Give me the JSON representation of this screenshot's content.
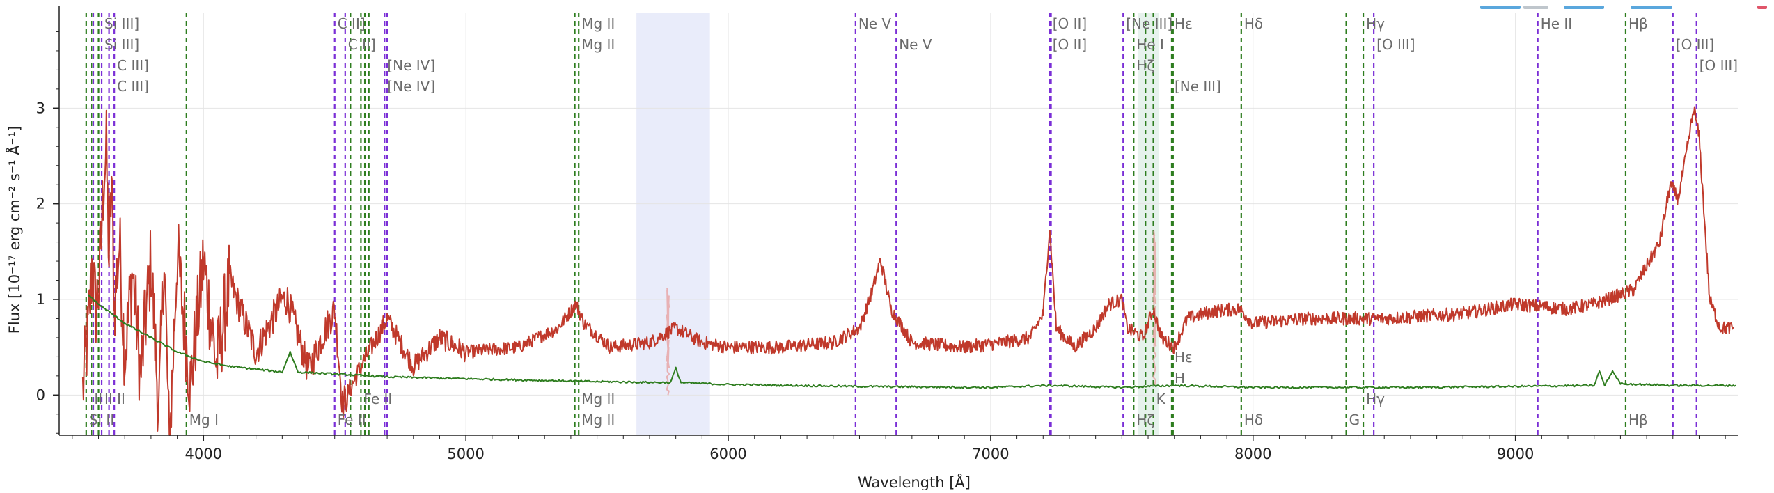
{
  "chart_data": {
    "type": "line",
    "title": "",
    "xlabel": "Wavelength [Å]",
    "ylabel": "Flux [10⁻¹⁷ erg cm⁻² s⁻¹ Å⁻¹]",
    "xlim": [
      3450,
      9850
    ],
    "ylim": [
      -0.42,
      4.0
    ],
    "xticks": [
      4000,
      5000,
      6000,
      7000,
      8000,
      9000
    ],
    "yticks": [
      0,
      1,
      2,
      3
    ],
    "grid": true,
    "series": [
      {
        "role": "spectrum",
        "color": "#c0392b",
        "anchors": [
          [
            3540,
            0.05
          ],
          [
            3560,
            0.65
          ],
          [
            3575,
            1.35
          ],
          [
            3590,
            0.9
          ],
          [
            3600,
            1.1
          ],
          [
            3610,
            1.6
          ],
          [
            3620,
            2.3
          ],
          [
            3630,
            2.55
          ],
          [
            3640,
            1.4
          ],
          [
            3650,
            2.25
          ],
          [
            3660,
            0.9
          ],
          [
            3680,
            1.6
          ],
          [
            3700,
            0.4
          ],
          [
            3730,
            1.3
          ],
          [
            3760,
            0.2
          ],
          [
            3800,
            1.4
          ],
          [
            3830,
            -0.2
          ],
          [
            3850,
            1.5
          ],
          [
            3870,
            -0.6
          ],
          [
            3900,
            1.5
          ],
          [
            3950,
            0.1
          ],
          [
            4000,
            1.4
          ],
          [
            4050,
            0.3
          ],
          [
            4100,
            1.2
          ],
          [
            4200,
            0.45
          ],
          [
            4300,
            1.0
          ],
          [
            4320,
            1.0
          ],
          [
            4400,
            0.25
          ],
          [
            4450,
            0.6
          ],
          [
            4500,
            0.9
          ],
          [
            4530,
            -0.1
          ],
          [
            4600,
            0.3
          ],
          [
            4700,
            0.8
          ],
          [
            4800,
            0.3
          ],
          [
            4900,
            0.6
          ],
          [
            5000,
            0.45
          ],
          [
            5200,
            0.5
          ],
          [
            5350,
            0.7
          ],
          [
            5420,
            0.95
          ],
          [
            5450,
            0.75
          ],
          [
            5550,
            0.5
          ],
          [
            5700,
            0.55
          ],
          [
            5800,
            0.7
          ],
          [
            5900,
            0.55
          ],
          [
            6000,
            0.5
          ],
          [
            6200,
            0.5
          ],
          [
            6400,
            0.55
          ],
          [
            6500,
            0.7
          ],
          [
            6550,
            1.1
          ],
          [
            6580,
            1.42
          ],
          [
            6620,
            0.9
          ],
          [
            6700,
            0.55
          ],
          [
            6900,
            0.5
          ],
          [
            7050,
            0.55
          ],
          [
            7150,
            0.6
          ],
          [
            7200,
            0.85
          ],
          [
            7225,
            1.75
          ],
          [
            7250,
            0.7
          ],
          [
            7320,
            0.5
          ],
          [
            7400,
            0.7
          ],
          [
            7450,
            0.95
          ],
          [
            7500,
            1.0
          ],
          [
            7520,
            0.7
          ],
          [
            7580,
            0.6
          ],
          [
            7620,
            0.9
          ],
          [
            7650,
            0.6
          ],
          [
            7700,
            0.5
          ],
          [
            7750,
            0.8
          ],
          [
            7850,
            0.88
          ],
          [
            7950,
            0.9
          ],
          [
            8000,
            0.75
          ],
          [
            8200,
            0.8
          ],
          [
            8500,
            0.8
          ],
          [
            8800,
            0.85
          ],
          [
            9000,
            0.95
          ],
          [
            9200,
            0.9
          ],
          [
            9300,
            0.95
          ],
          [
            9450,
            1.1
          ],
          [
            9550,
            1.6
          ],
          [
            9590,
            2.2
          ],
          [
            9620,
            2.05
          ],
          [
            9650,
            2.5
          ],
          [
            9680,
            3.0
          ],
          [
            9700,
            2.7
          ],
          [
            9740,
            1.0
          ],
          [
            9780,
            0.7
          ],
          [
            9830,
            0.7
          ]
        ]
      },
      {
        "role": "model-or-noise",
        "color": "#2e7d1f",
        "anchors": [
          [
            3560,
            1.05
          ],
          [
            3600,
            0.95
          ],
          [
            3700,
            0.75
          ],
          [
            3800,
            0.6
          ],
          [
            3900,
            0.45
          ],
          [
            4000,
            0.35
          ],
          [
            4100,
            0.3
          ],
          [
            4200,
            0.27
          ],
          [
            4300,
            0.24
          ],
          [
            4330,
            0.45
          ],
          [
            4360,
            0.24
          ],
          [
            4500,
            0.22
          ],
          [
            4700,
            0.19
          ],
          [
            5000,
            0.17
          ],
          [
            5500,
            0.14
          ],
          [
            5780,
            0.13
          ],
          [
            5800,
            0.28
          ],
          [
            5820,
            0.13
          ],
          [
            6000,
            0.11
          ],
          [
            6500,
            0.09
          ],
          [
            7000,
            0.08
          ],
          [
            7225,
            0.1
          ],
          [
            7500,
            0.08
          ],
          [
            7700,
            0.1
          ],
          [
            8000,
            0.08
          ],
          [
            8600,
            0.08
          ],
          [
            9000,
            0.09
          ],
          [
            9300,
            0.1
          ],
          [
            9320,
            0.25
          ],
          [
            9340,
            0.1
          ],
          [
            9370,
            0.25
          ],
          [
            9400,
            0.12
          ],
          [
            9600,
            0.1
          ],
          [
            9840,
            0.1
          ]
        ]
      }
    ],
    "shaded_bands": [
      {
        "x0": 5650,
        "x1": 5930,
        "color": "#e9ecfa"
      },
      {
        "x0": 7560,
        "x1": 7640,
        "color": "#e6f2ec"
      }
    ],
    "faint_features": [
      {
        "x": 5770,
        "y0": 0.0,
        "y1": 1.25,
        "color": "#e7a3a3"
      },
      {
        "x": 7625,
        "y0": 0.1,
        "y1": 1.9,
        "color": "#e7a3a3"
      }
    ],
    "line_markers": [
      {
        "x": 3553,
        "type": "abs",
        "labels_top": [],
        "labels_bottom": [
          {
            "text": "Si II",
            "row": 1
          }
        ]
      },
      {
        "x": 3573,
        "type": "abs",
        "labels_top": [],
        "labels_bottom": [
          {
            "text": "II",
            "row": 0
          }
        ]
      },
      {
        "x": 3612,
        "type": "em",
        "labels_top": [
          {
            "text": "Si III]",
            "row": 0
          },
          {
            "text": "Si III]",
            "row": 1
          }
        ],
        "labels_bottom": [
          {
            "text": "II",
            "row": 0
          }
        ]
      },
      {
        "x": 3660,
        "type": "em",
        "labels_top": [
          {
            "text": "C III]",
            "row": 2
          },
          {
            "text": "C III]",
            "row": 3
          }
        ],
        "labels_bottom": [
          {
            "text": "II",
            "row": 0
          }
        ]
      },
      {
        "x": 3935,
        "type": "abs",
        "labels_top": [],
        "labels_bottom": [
          {
            "text": "Mg I",
            "row": 1
          }
        ]
      },
      {
        "x": 4500,
        "type": "em",
        "labels_top": [
          {
            "text": "C II]",
            "row": 0
          }
        ],
        "labels_bottom": [
          {
            "text": "Fe II",
            "row": 1
          }
        ]
      },
      {
        "x": 4540,
        "type": "em",
        "labels_top": [
          {
            "text": "C II]",
            "row": 1
          }
        ],
        "labels_bottom": []
      },
      {
        "x": 4600,
        "type": "abs",
        "labels_top": [],
        "labels_bottom": [
          {
            "text": "Fe II",
            "row": 0
          }
        ]
      },
      {
        "x": 4690,
        "type": "em",
        "labels_top": [
          {
            "text": "[Ne IV]",
            "row": 2
          },
          {
            "text": "[Ne IV]",
            "row": 3
          }
        ],
        "labels_bottom": []
      },
      {
        "x": 5430,
        "type": "abs",
        "labels_top": [
          {
            "text": "Mg II",
            "row": 0
          },
          {
            "text": "Mg II",
            "row": 1
          }
        ],
        "labels_bottom": [
          {
            "text": "Mg II",
            "row": 0
          },
          {
            "text": "Mg II",
            "row": 1
          }
        ]
      },
      {
        "x": 6485,
        "type": "em",
        "labels_top": [
          {
            "text": "Ne V",
            "row": 0
          }
        ],
        "labels_bottom": []
      },
      {
        "x": 6640,
        "type": "em",
        "labels_top": [
          {
            "text": "Ne V",
            "row": 1
          }
        ],
        "labels_bottom": []
      },
      {
        "x": 7225,
        "type": "em",
        "labels_top": [
          {
            "text": "[O II]",
            "row": 0
          },
          {
            "text": "[O II]",
            "row": 1
          }
        ],
        "labels_bottom": []
      },
      {
        "x": 7505,
        "type": "em",
        "labels_top": [
          {
            "text": "[Ne III]",
            "row": 0
          }
        ],
        "labels_bottom": []
      },
      {
        "x": 7545,
        "type": "abs",
        "labels_top": [
          {
            "text": "He I",
            "row": 1
          },
          {
            "text": "Hζ",
            "row": 2
          }
        ],
        "labels_bottom": [
          {
            "text": "Hζ",
            "row": 1
          }
        ]
      },
      {
        "x": 7620,
        "type": "abs",
        "labels_top": [],
        "labels_bottom": [
          {
            "text": "K",
            "row": 0
          }
        ]
      },
      {
        "x": 7690,
        "type": "abs",
        "labels_top": [
          {
            "text": "Hε",
            "row": 0
          },
          {
            "text": "[Ne III]",
            "row": 3
          }
        ],
        "labels_bottom": [
          {
            "text": "Hε",
            "row": -2
          },
          {
            "text": "H",
            "row": -1
          }
        ]
      },
      {
        "x": 7955,
        "type": "abs",
        "labels_top": [
          {
            "text": "Hδ",
            "row": 0
          }
        ],
        "labels_bottom": [
          {
            "text": "Hδ",
            "row": 1
          }
        ]
      },
      {
        "x": 8355,
        "type": "abs",
        "labels_top": [],
        "labels_bottom": [
          {
            "text": "G",
            "row": 1
          }
        ]
      },
      {
        "x": 8420,
        "type": "abs",
        "labels_top": [
          {
            "text": "Hγ",
            "row": 0
          }
        ],
        "labels_bottom": [
          {
            "text": "Hγ",
            "row": 0
          }
        ]
      },
      {
        "x": 8460,
        "type": "em",
        "labels_top": [
          {
            "text": "[O III]",
            "row": 1
          }
        ],
        "labels_bottom": []
      },
      {
        "x": 9085,
        "type": "em",
        "labels_top": [
          {
            "text": "He II",
            "row": 0
          }
        ],
        "labels_bottom": []
      },
      {
        "x": 9420,
        "type": "abs",
        "labels_top": [
          {
            "text": "Hβ",
            "row": 0
          }
        ],
        "labels_bottom": [
          {
            "text": "Hβ",
            "row": 1
          }
        ]
      },
      {
        "x": 9600,
        "type": "em",
        "labels_top": [
          {
            "text": "[O III]",
            "row": 1
          }
        ],
        "labels_bottom": []
      },
      {
        "x": 9690,
        "type": "em",
        "labels_top": [
          {
            "text": "[O III]",
            "row": 2
          }
        ],
        "labels_bottom": []
      }
    ],
    "extra_marker_lines": [
      {
        "x": 3580,
        "type": "em"
      },
      {
        "x": 3600,
        "type": "abs"
      },
      {
        "x": 3640,
        "type": "em"
      },
      {
        "x": 4560,
        "type": "abs"
      },
      {
        "x": 4615,
        "type": "abs"
      },
      {
        "x": 4630,
        "type": "abs"
      },
      {
        "x": 4700,
        "type": "em"
      },
      {
        "x": 5415,
        "type": "abs"
      },
      {
        "x": 7230,
        "type": "em"
      },
      {
        "x": 7590,
        "type": "abs"
      },
      {
        "x": 7695,
        "type": "abs"
      }
    ],
    "colors": {
      "emission": "#7b2fd6",
      "absorption": "#2e7d1f",
      "label": "#6b6b6b",
      "grid": "#e4e4e4",
      "axis": "#222222"
    }
  }
}
